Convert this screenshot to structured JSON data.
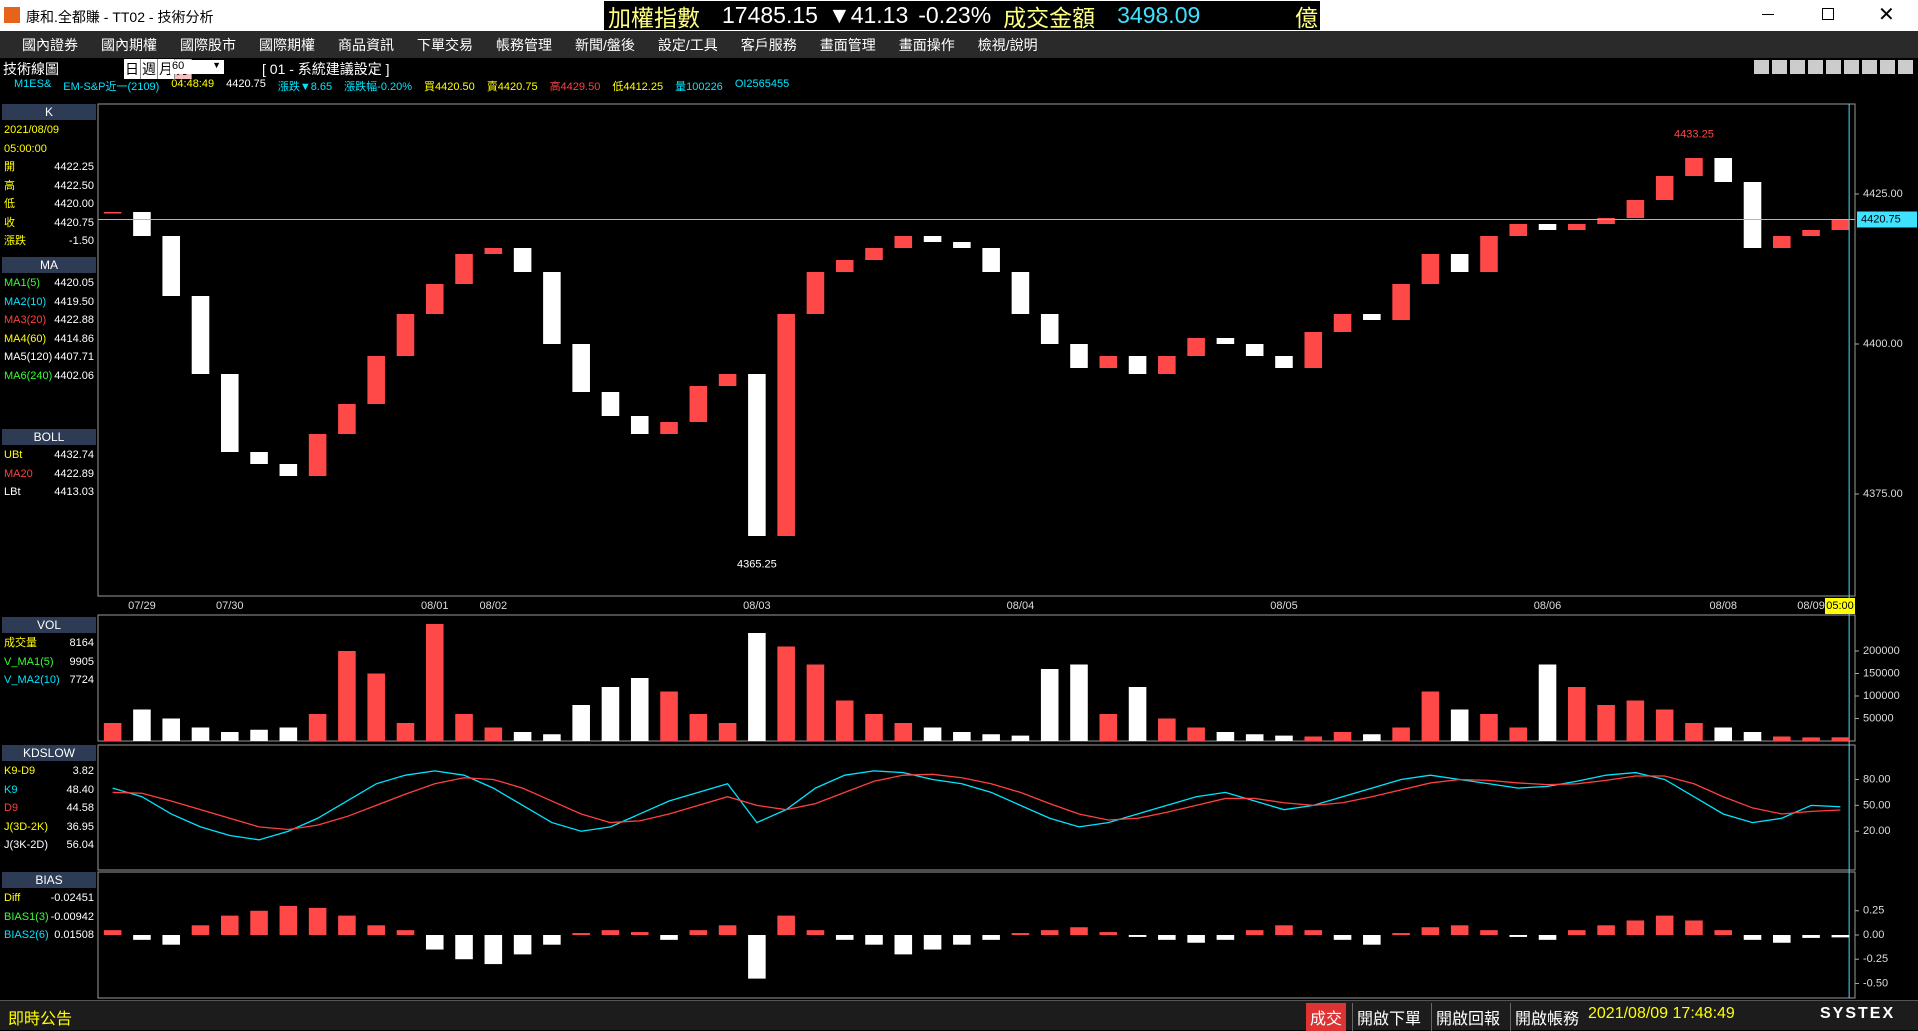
{
  "title_bar": {
    "title": "康和.全都賺 - TT02 - 技術分析",
    "ticker": {
      "name": "加權指數",
      "index": "17485.15",
      "change": "▼41.13",
      "change_pct": "-0.23%",
      "turnover_label": "成交金額",
      "turnover": "3498.09",
      "unit": "億"
    }
  },
  "menu": [
    "國內證券",
    "國內期權",
    "國際股市",
    "國際期權",
    "商品資訊",
    "下單交易",
    "帳務管理",
    "新聞/盤後",
    "設定/工具",
    "客戶服務",
    "畫面管理",
    "畫面操作",
    "檢視/說明"
  ],
  "toolbar": {
    "title": "技術線圖",
    "periods": [
      "日",
      "週",
      "月",
      "分"
    ],
    "interval": "60",
    "setting": "[ 01 - 系統建議設定 ]"
  },
  "quote_line": [
    {
      "text": "M1ES&",
      "color": "#00e5ff"
    },
    {
      "text": "EM-S&P近一(2109)",
      "color": "#00e5ff"
    },
    {
      "text": "04:48:49",
      "color": "#ffff00"
    },
    {
      "text": "4420.75",
      "color": "#ffffff"
    },
    {
      "text": "漲跌▼8.65",
      "color": "#00e5ff"
    },
    {
      "text": "漲跌幅-0.20%",
      "color": "#00e5ff"
    },
    {
      "text": "買4420.50",
      "color": "#ffff00"
    },
    {
      "text": "賣4420.75",
      "color": "#ffff00"
    },
    {
      "text": "高4429.50",
      "color": "#ff4040"
    },
    {
      "text": "低4412.25",
      "color": "#ffff00"
    },
    {
      "text": "量100226",
      "color": "#00e5ff"
    },
    {
      "text": "OI2565455",
      "color": "#00e5ff"
    }
  ],
  "indicator_panel": [
    {
      "title": "K",
      "rows": [
        {
          "label": "2021/08/09",
          "color": "#ffff00"
        },
        {
          "label": "05:00:00",
          "color": "#ffff00"
        },
        {
          "label": "開",
          "value": "4422.25",
          "color": "#ffff00"
        },
        {
          "label": "高",
          "value": "4422.50",
          "color": "#ffff00"
        },
        {
          "label": "低",
          "value": "4420.00",
          "color": "#ffff00"
        },
        {
          "label": "收",
          "value": "4420.75",
          "color": "#ffff00"
        },
        {
          "label": "漲跌",
          "value": "-1.50",
          "color": "#ffff00"
        }
      ]
    },
    {
      "title": "MA",
      "rows": [
        {
          "label": "MA1(5)",
          "value": "4420.05",
          "color": "#33ff33"
        },
        {
          "label": "MA2(10)",
          "value": "4419.50",
          "color": "#00e5ff"
        },
        {
          "label": "MA3(20)",
          "value": "4422.88",
          "color": "#ff4040"
        },
        {
          "label": "MA4(60)",
          "value": "4414.86",
          "color": "#ffff00"
        },
        {
          "label": "MA5(120)",
          "value": "4407.71",
          "color": "#ffffff"
        },
        {
          "label": "MA6(240)",
          "value": "4402.06",
          "color": "#33ff33"
        }
      ]
    },
    {
      "title": "BOLL",
      "rows": [
        {
          "label": "UBt",
          "value": "4432.74",
          "color": "#ffff00"
        },
        {
          "label": "MA20",
          "value": "4422.89",
          "color": "#ff4040"
        },
        {
          "label": "LBt",
          "value": "4413.03",
          "color": "#ffffff"
        }
      ]
    },
    {
      "title": "VOL",
      "rows": [
        {
          "label": "成交量",
          "value": "8164",
          "color": "#ffff00"
        },
        {
          "label": "V_MA1(5)",
          "value": "9905",
          "color": "#33ff33"
        },
        {
          "label": "V_MA2(10)",
          "value": "7724",
          "color": "#00e5ff"
        }
      ]
    },
    {
      "title": "KDSLOW",
      "rows": [
        {
          "label": "K9-D9",
          "value": "3.82",
          "color": "#ffff00"
        },
        {
          "label": "K9",
          "value": "48.40",
          "color": "#00e5ff"
        },
        {
          "label": "D9",
          "value": "44.58",
          "color": "#ff4040"
        },
        {
          "label": "J(3D-2K)",
          "value": "36.95",
          "color": "#ffff00"
        },
        {
          "label": "J(3K-2D)",
          "value": "56.04",
          "color": "#ffffff"
        }
      ]
    },
    {
      "title": "BIAS",
      "rows": [
        {
          "label": "Diff",
          "value": "-0.02451",
          "color": "#ffff00"
        },
        {
          "label": "BIAS1(3)",
          "value": "-0.00942",
          "color": "#33ff33"
        },
        {
          "label": "BIAS2(6)",
          "value": "0.01508",
          "color": "#00e5ff"
        }
      ]
    }
  ],
  "chart_data": [
    {
      "type": "candlestick",
      "x": [
        null,
        "07/29",
        null,
        null,
        "07/30",
        null,
        null,
        null,
        null,
        null,
        null,
        "08/01",
        null,
        "08/02",
        null,
        null,
        null,
        null,
        null,
        null,
        null,
        null,
        "08/03",
        null,
        null,
        null,
        null,
        null,
        null,
        null,
        null,
        "08/04",
        null,
        null,
        null,
        null,
        null,
        null,
        null,
        null,
        "08/05",
        null,
        null,
        null,
        null,
        null,
        null,
        null,
        null,
        "08/06",
        null,
        null,
        null,
        null,
        null,
        "08/08",
        null,
        null,
        "08/09",
        null
      ],
      "values": [
        4422,
        4418,
        4408,
        4395,
        4382,
        4380,
        4378,
        4385,
        4390,
        4398,
        4405,
        4410,
        4415,
        4416,
        4412,
        4400,
        4392,
        4388,
        4385,
        4387,
        4393,
        4395,
        4368,
        4405,
        4412,
        4414,
        4416,
        4418,
        4417,
        4416,
        4412,
        4405,
        4400,
        4396,
        4398,
        4395,
        4398,
        4401,
        4400,
        4398,
        4396,
        4402,
        4405,
        4404,
        4410,
        4415,
        4412,
        4418,
        4420,
        4419,
        4420,
        4421,
        4424,
        4428,
        4431,
        4427,
        4416,
        4418,
        4419,
        4420.75
      ],
      "ylim": [
        4358,
        4440
      ],
      "yticks": [
        {
          "value": 4425,
          "label": "4425.00"
        },
        {
          "value": 4400,
          "label": "4400.00"
        },
        {
          "value": 4375,
          "label": "4375.00"
        }
      ],
      "last_price": 4420.75,
      "annotations": [
        {
          "x": 54,
          "value": 4433.25
        },
        {
          "x": 22,
          "value": 4365.25
        }
      ],
      "cursor_label": "05:00",
      "up_color": "#ff4848",
      "down_color": "#ffffff"
    },
    {
      "type": "volume",
      "values": [
        40000,
        70000,
        50000,
        30000,
        20000,
        25000,
        30000,
        60000,
        200000,
        150000,
        40000,
        260000,
        60000,
        30000,
        20000,
        15000,
        80000,
        120000,
        140000,
        110000,
        60000,
        40000,
        240000,
        210000,
        170000,
        90000,
        60000,
        40000,
        30000,
        20000,
        15000,
        12000,
        160000,
        170000,
        60000,
        120000,
        50000,
        30000,
        20000,
        15000,
        12000,
        10000,
        20000,
        15000,
        30000,
        110000,
        70000,
        60000,
        30000,
        170000,
        120000,
        80000,
        90000,
        70000,
        40000,
        30000,
        20000,
        10000,
        8000,
        8164
      ],
      "ylim": [
        0,
        280000
      ],
      "yticks": [
        200000,
        150000,
        100000,
        50000
      ],
      "up_color": "#ff4848",
      "down_color": "#ffffff"
    },
    {
      "type": "line",
      "series": [
        {
          "color": "#00e5ff",
          "values": [
            70,
            60,
            40,
            25,
            15,
            10,
            20,
            35,
            55,
            75,
            85,
            90,
            85,
            70,
            50,
            30,
            20,
            25,
            40,
            55,
            65,
            75,
            30,
            45,
            70,
            85,
            90,
            88,
            80,
            75,
            65,
            50,
            35,
            25,
            30,
            40,
            50,
            60,
            65,
            55,
            45,
            50,
            60,
            70,
            80,
            85,
            80,
            75,
            70,
            72,
            78,
            85,
            88,
            80,
            60,
            40,
            30,
            35,
            50,
            48.4
          ]
        },
        {
          "color": "#ff4040",
          "values": [
            65,
            64,
            55,
            45,
            35,
            25,
            22,
            27,
            37,
            50,
            63,
            75,
            82,
            80,
            70,
            55,
            40,
            30,
            32,
            40,
            50,
            60,
            50,
            45,
            52,
            65,
            78,
            85,
            86,
            82,
            75,
            65,
            52,
            40,
            33,
            35,
            42,
            50,
            58,
            58,
            53,
            50,
            53,
            60,
            68,
            76,
            80,
            79,
            76,
            74,
            75,
            79,
            84,
            84,
            75,
            60,
            47,
            40,
            43,
            44.58
          ]
        }
      ],
      "ylim": [
        -25,
        120
      ],
      "yticks": [
        {
          "value": 80,
          "label": "80.00"
        },
        {
          "value": 50,
          "label": "50.00"
        },
        {
          "value": 20,
          "label": "20.00"
        }
      ]
    },
    {
      "type": "bar",
      "values": [
        0.05,
        -0.05,
        -0.1,
        0.1,
        0.2,
        0.25,
        0.3,
        0.28,
        0.2,
        0.1,
        0.05,
        -0.15,
        -0.25,
        -0.3,
        -0.2,
        -0.1,
        0.02,
        0.05,
        0.03,
        -0.05,
        0.05,
        0.1,
        -0.45,
        0.2,
        0.05,
        -0.05,
        -0.1,
        -0.2,
        -0.15,
        -0.1,
        -0.05,
        0.02,
        0.05,
        0.08,
        0.03,
        -0.02,
        -0.05,
        -0.08,
        -0.05,
        0.05,
        0.1,
        0.05,
        -0.05,
        -0.1,
        0.02,
        0.08,
        0.1,
        0.05,
        -0.02,
        -0.05,
        0.05,
        0.1,
        0.15,
        0.2,
        0.15,
        0.05,
        -0.05,
        -0.08,
        -0.03,
        -0.02451
      ],
      "ylim": [
        -0.65,
        0.65
      ],
      "yticks": [
        0.25,
        {
          "value": 0,
          "label": "0.00"
        },
        -0.25,
        {
          "value": -0.5,
          "label": "-0.50"
        }
      ],
      "up_color": "#ff4848",
      "down_color": "#ffffff"
    }
  ],
  "status_bar": {
    "notice": "即時公告",
    "buttons": [
      "成交",
      "開啟下單",
      "開啟回報",
      "開啟帳務"
    ],
    "datetime": "2021/08/09 17:48:49",
    "brand": "SYSTEX"
  }
}
